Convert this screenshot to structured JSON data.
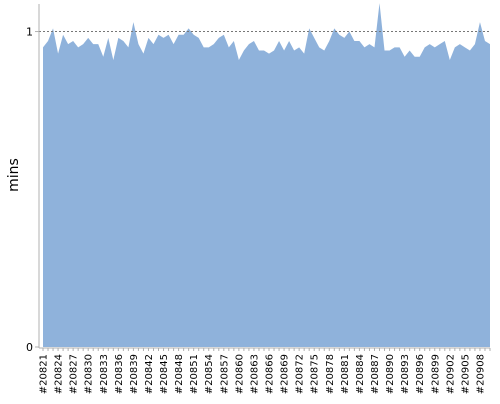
{
  "chart_data": {
    "type": "area",
    "title": "",
    "xlabel": "",
    "ylabel": "mins",
    "ylim": [
      0,
      1.1
    ],
    "yticks": [
      0,
      1
    ],
    "reference_line": 1,
    "fill_color": "#8fb2db",
    "grid": false,
    "series": [
      {
        "values": [
          0.95,
          0.97,
          1.01,
          0.93,
          0.99,
          0.96,
          0.97,
          0.95,
          0.96,
          0.98,
          0.96,
          0.96,
          0.92,
          0.98,
          0.91,
          0.98,
          0.97,
          0.95,
          1.03,
          0.96,
          0.93,
          0.98,
          0.96,
          0.99,
          0.98,
          0.99,
          0.96,
          0.99,
          0.99,
          1.01,
          0.99,
          0.98,
          0.95,
          0.95,
          0.96,
          0.98,
          0.99,
          0.95,
          0.97,
          0.91,
          0.94,
          0.96,
          0.97,
          0.94,
          0.94,
          0.93,
          0.94,
          0.97,
          0.94,
          0.97,
          0.94,
          0.95,
          0.93,
          1.01,
          0.98,
          0.95,
          0.94,
          0.97,
          1.01,
          0.99,
          0.98,
          1.0,
          0.97,
          0.97,
          0.95,
          0.96,
          0.95,
          1.09,
          0.94,
          0.94,
          0.95,
          0.95,
          0.92,
          0.94,
          0.92,
          0.92,
          0.95,
          0.96,
          0.95,
          0.96,
          0.97,
          0.91,
          0.95,
          0.96,
          0.95,
          0.94,
          0.96,
          1.03,
          0.97,
          0.96
        ]
      }
    ],
    "x_tick_labels": [
      "#20821",
      "#20824",
      "#20827",
      "#20830",
      "#20833",
      "#20836",
      "#20839",
      "#20842",
      "#20845",
      "#20848",
      "#20851",
      "#20854",
      "#20857",
      "#20860",
      "#20863",
      "#20866",
      "#20869",
      "#20872",
      "#20875",
      "#20878",
      "#20881",
      "#20884",
      "#20887",
      "#20890",
      "#20893",
      "#20896",
      "#20899",
      "#20902",
      "#20905",
      "#20908"
    ]
  }
}
